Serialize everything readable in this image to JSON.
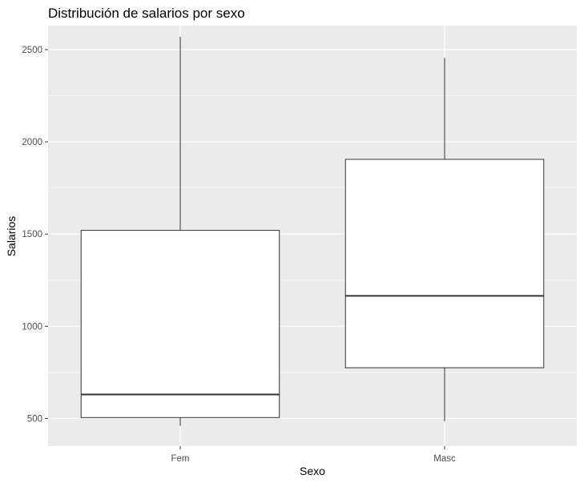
{
  "chart_data": {
    "type": "boxplot",
    "title": "Distribución de salarios por sexo",
    "xlabel": "Sexo",
    "ylabel": "Salarios",
    "categories": [
      "Fem",
      "Masc"
    ],
    "boxes": [
      {
        "category": "Fem",
        "whisker_low": 460,
        "q1": 505,
        "median": 630,
        "q3": 1520,
        "whisker_high": 2570
      },
      {
        "category": "Masc",
        "whisker_low": 485,
        "q1": 775,
        "median": 1165,
        "q3": 1905,
        "whisker_high": 2455
      }
    ],
    "yticks": [
      500,
      1000,
      1500,
      2000,
      2500
    ],
    "ylim": [
      350,
      2630
    ],
    "grid": true,
    "colors": {
      "panel_background": "#EBEBEB",
      "grid": "#FFFFFF",
      "box_fill": "#FFFFFF",
      "box_stroke": "#333333"
    }
  }
}
